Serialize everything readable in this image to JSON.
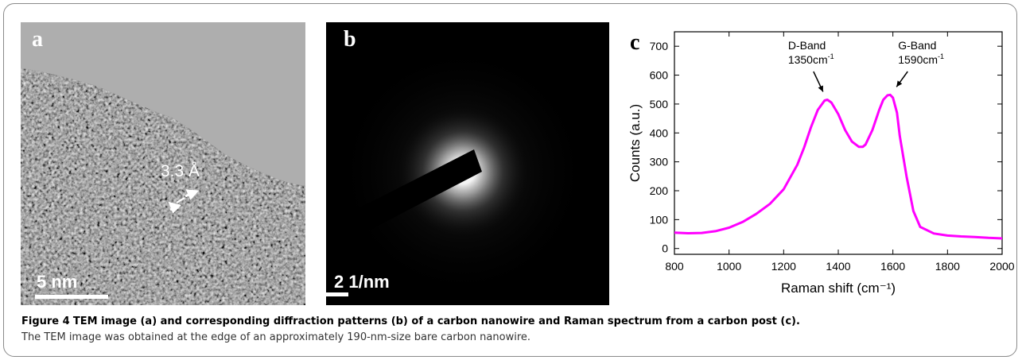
{
  "panel_a": {
    "letter": "a",
    "scale_bar": "5 nm",
    "spacing_label": "3.3 Å"
  },
  "panel_b": {
    "letter": "b",
    "scale_bar": "2 1/nm"
  },
  "panel_c": {
    "letter": "c"
  },
  "chart_data": {
    "type": "line",
    "xlabel": "Raman shift (cm⁻¹)",
    "ylabel": "Counts (a.u.)",
    "xlim": [
      800,
      2000
    ],
    "ylim": [
      -20,
      750
    ],
    "xticks": [
      800,
      1000,
      1200,
      1400,
      1600,
      1800,
      2000
    ],
    "yticks": [
      0,
      100,
      200,
      300,
      400,
      500,
      600,
      700
    ],
    "grid": false,
    "series_color": "#ff00ff",
    "x": [
      800,
      850,
      900,
      950,
      1000,
      1050,
      1100,
      1150,
      1200,
      1250,
      1275,
      1300,
      1325,
      1350,
      1360,
      1375,
      1400,
      1425,
      1450,
      1475,
      1490,
      1500,
      1525,
      1550,
      1565,
      1580,
      1590,
      1600,
      1615,
      1625,
      1650,
      1675,
      1700,
      1750,
      1800,
      1850,
      1900,
      1950,
      2000
    ],
    "y": [
      55,
      53,
      54,
      60,
      72,
      92,
      120,
      155,
      205,
      290,
      350,
      420,
      480,
      512,
      515,
      505,
      465,
      410,
      370,
      352,
      352,
      360,
      410,
      480,
      515,
      530,
      532,
      522,
      470,
      390,
      250,
      130,
      75,
      52,
      45,
      42,
      40,
      37,
      35
    ],
    "annotations": [
      {
        "line1": "D-Band",
        "line2": "1350cm",
        "sup": "-1",
        "x": 1350
      },
      {
        "line1": "G-Band",
        "line2": "1590cm",
        "sup": "-1",
        "x": 1590
      }
    ]
  },
  "caption": {
    "label": "Figure 4",
    "title": "TEM image (a) and corresponding diffraction patterns (b) of a carbon nanowire and Raman spectrum from a carbon post (c).",
    "body": "The TEM image was obtained at the edge of an approximately 190-nm-size bare carbon nanowire."
  }
}
